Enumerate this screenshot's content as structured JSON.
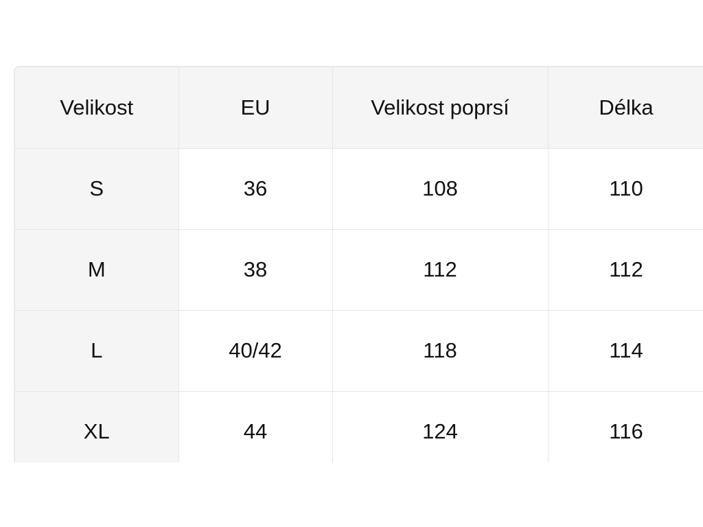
{
  "table": {
    "header": [
      "Velikost",
      "EU",
      "Velikost poprsí",
      "Délka"
    ],
    "rows": [
      [
        "S",
        "36",
        "108",
        "110"
      ],
      [
        "M",
        "38",
        "112",
        "112"
      ],
      [
        "L",
        "40/42",
        "118",
        "114"
      ],
      [
        "XL",
        "44",
        "124",
        "116"
      ]
    ]
  }
}
